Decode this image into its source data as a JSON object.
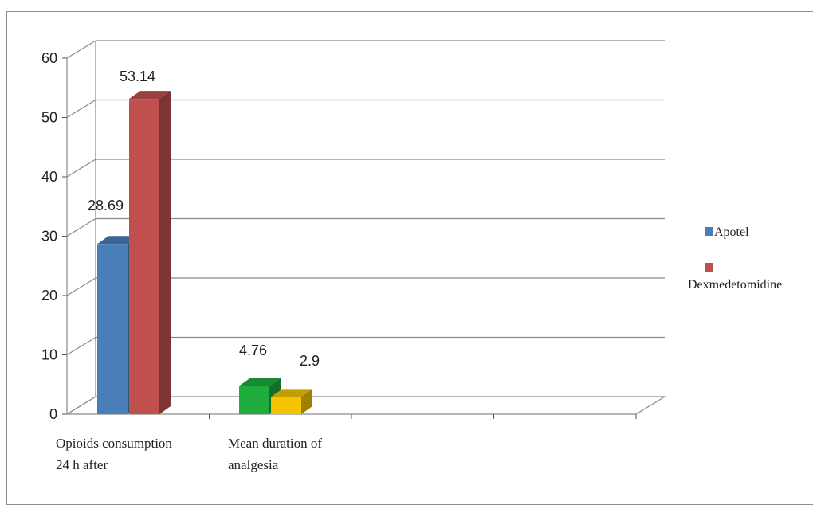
{
  "chart_data": {
    "type": "bar",
    "style": "3d-clustered-column",
    "ylim": [
      0,
      60
    ],
    "yticks": [
      "0",
      "10",
      "20",
      "30",
      "40",
      "50",
      "60"
    ],
    "grid": true,
    "legend_position": "right",
    "categories": [
      [
        "Opioids consumption",
        "24 h after"
      ],
      [
        "Mean duration of",
        "analgesia"
      ]
    ],
    "series": [
      {
        "name": "Apotel",
        "color": "#4a7ebb"
      },
      {
        "name": "Dexmedetomidine",
        "color": "#c0504d"
      }
    ],
    "bars": [
      {
        "category": 0,
        "series": 0,
        "value": 28.69,
        "label": "28.69",
        "color": "#4a7ebb"
      },
      {
        "category": 0,
        "series": 1,
        "value": 53.14,
        "label": "53.14",
        "color": "#c0504d"
      },
      {
        "category": 1,
        "series": 0,
        "value": 4.76,
        "label": "4.76",
        "color": "#1fad3e"
      },
      {
        "category": 1,
        "series": 1,
        "value": 2.9,
        "label": "2.9",
        "color": "#f5c400"
      }
    ]
  }
}
